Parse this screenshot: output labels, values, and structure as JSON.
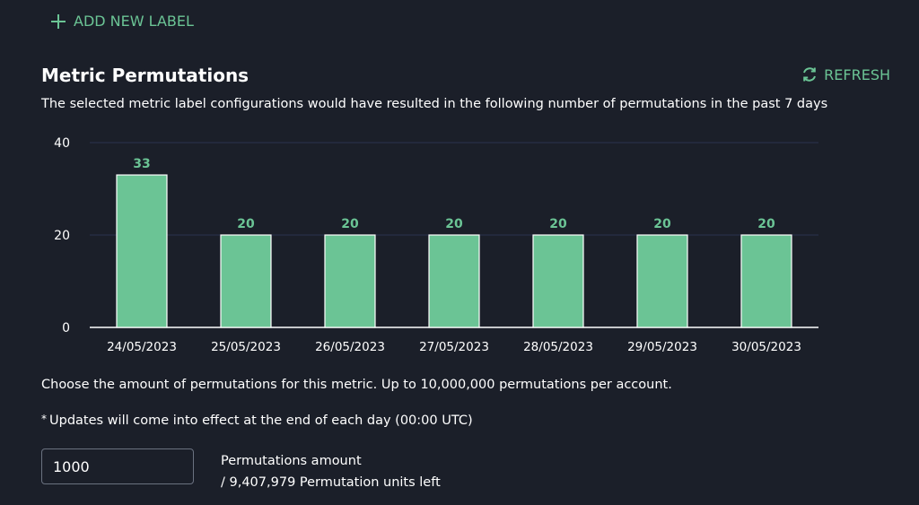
{
  "actions": {
    "add_label": "ADD NEW LABEL",
    "refresh": "REFRESH"
  },
  "section": {
    "title": "Metric Permutations",
    "subtitle": "The selected metric label configurations would have resulted in the following number of permutations in the past 7 days"
  },
  "chart_data": {
    "type": "bar",
    "categories": [
      "24/05/2023",
      "25/05/2023",
      "26/05/2023",
      "27/05/2023",
      "28/05/2023",
      "29/05/2023",
      "30/05/2023"
    ],
    "values": [
      33,
      20,
      20,
      20,
      20,
      20,
      20
    ],
    "data_labels": [
      "33",
      "20",
      "20",
      "20",
      "20",
      "20",
      "20"
    ],
    "y_ticks": [
      "0",
      "20",
      "40"
    ],
    "ylim": [
      0,
      40
    ],
    "grid": true,
    "bar_color": "#6bc495",
    "label_color": "#6bc495"
  },
  "settings": {
    "choose_text": "Choose the amount of permutations for this metric. Up to 10,000,000 permutations per account.",
    "note_star": "*",
    "note_text": "Updates will come into effect at the end of each day (00:00 UTC)",
    "amount_value": "1000",
    "amount_label": "Permutations amount",
    "units_left": "/ 9,407,979 Permutation units left"
  },
  "colors": {
    "background": "#1b1f29",
    "accent": "#6bc495",
    "text": "#ffffff"
  }
}
